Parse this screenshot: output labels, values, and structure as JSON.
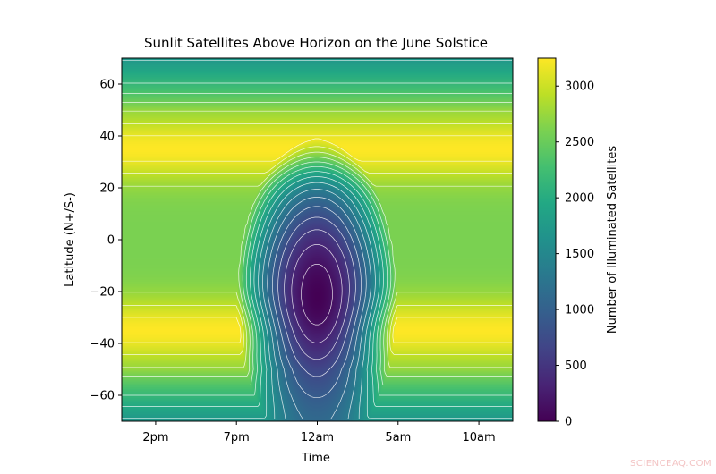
{
  "chart_data": {
    "type": "heatmap",
    "title": "Sunlit Satellites Above Horizon on the June Solstice",
    "xlabel": "Time",
    "ylabel": "Latitude (N+/S-)",
    "colorbar_label": "Number of Illuminated Satellites",
    "colormap": "viridis",
    "x_ticks": [
      "2pm",
      "7pm",
      "12am",
      "5am",
      "10am"
    ],
    "x_tick_hours": [
      2,
      7,
      12,
      17,
      22
    ],
    "x_range_hours": [
      -0.1,
      24.1
    ],
    "y_ticks": [
      60,
      40,
      20,
      0,
      -20,
      -40,
      -60
    ],
    "ylim": [
      -70,
      70
    ],
    "colorbar_ticks": [
      3000,
      2500,
      2000,
      1500,
      1000,
      500,
      0
    ],
    "colorbar_range": [
      0,
      3250
    ],
    "contour_lines": "white",
    "peak_bands_latitude": [
      35,
      -35
    ],
    "minimum_region": {
      "center_time": "12am",
      "latitude_range": [
        -48,
        2
      ],
      "value": 0
    },
    "max_value": 3250
  },
  "watermark": "SCIENCEAQ.COM"
}
